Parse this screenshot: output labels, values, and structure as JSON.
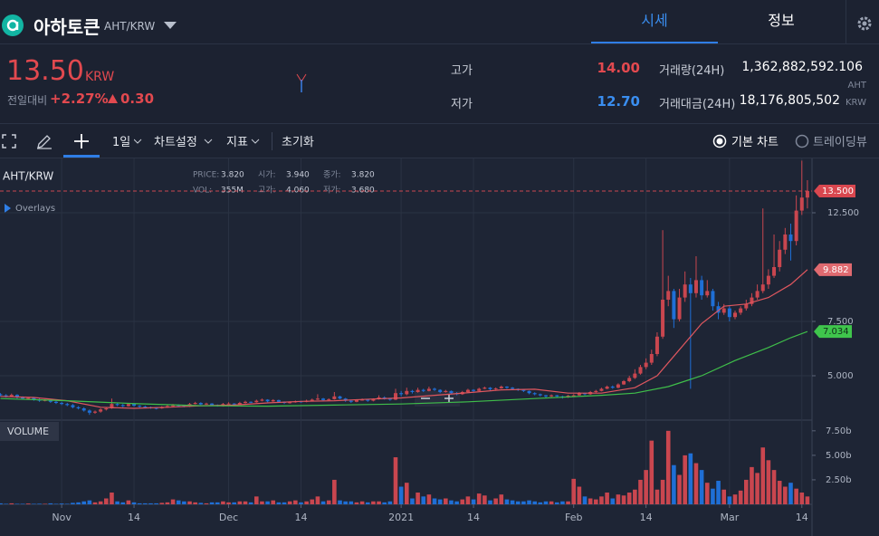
{
  "header": {
    "name": "아하토큰",
    "pair": "AHT/KRW",
    "tabs": [
      "시세",
      "정보"
    ]
  },
  "ticker": {
    "price": "13.50",
    "currency": "KRW",
    "change_label": "전일대비",
    "change_rate": "+2.27%",
    "change_value": "0.30",
    "stats": [
      {
        "label": "고가",
        "value": "14.00"
      },
      {
        "label": "저가",
        "value": "12.70"
      }
    ],
    "volume": {
      "label": "거래량(24H)",
      "value": "1,362,882,592.106",
      "unit": "AHT"
    },
    "turnover": {
      "label": "거래대금(24H)",
      "value": "18,176,805,502",
      "unit": "KRW"
    }
  },
  "toolbar": {
    "interval": "1일",
    "menus": [
      "차트설정",
      "지표"
    ],
    "reset": "초기화",
    "modes": [
      "기본 차트",
      "트레이딩뷰"
    ]
  },
  "chart_data": {
    "type": "candlestick",
    "symbol": "AHT/KRW",
    "legend": [
      {
        "label": "PRICE:",
        "value": "3.820"
      },
      {
        "label": "시가:",
        "value": "3.940"
      },
      {
        "label": "종가:",
        "value": "3.820"
      },
      {
        "label": "VOL:",
        "value": "355M"
      },
      {
        "label": "고가:",
        "value": "4.060"
      },
      {
        "label": "저가:",
        "value": "3.680"
      }
    ],
    "overlays": "Overlays",
    "volume_title": "VOLUME",
    "grid": true,
    "up_color": "#c9464f",
    "down_color": "#1f6fd6",
    "xlim": [
      0,
      145.5
    ],
    "xticks": [
      {
        "value": 11,
        "label": "Nov"
      },
      {
        "value": 24,
        "label": "14"
      },
      {
        "value": 41,
        "label": "Dec"
      },
      {
        "value": 54,
        "label": "14"
      },
      {
        "value": 72,
        "label": "2021"
      },
      {
        "value": 85,
        "label": "14"
      },
      {
        "value": 103,
        "label": "Feb"
      },
      {
        "value": 116,
        "label": "14"
      },
      {
        "value": 131,
        "label": "Mar"
      },
      {
        "value": 144,
        "label": "14"
      }
    ],
    "ylim": [
      3,
      15
    ],
    "yticks": [
      {
        "value": 5,
        "label": "5.000"
      },
      {
        "value": 7.5,
        "label": "7.500"
      },
      {
        "value": 12.5,
        "label": "12.500"
      }
    ],
    "price_line": {
      "value": 13.5,
      "label": "13.500"
    },
    "candles": [
      [
        4.15,
        4.2,
        4.05,
        4.1
      ],
      [
        4.1,
        4.15,
        4.0,
        4.05
      ],
      [
        4.05,
        4.18,
        4.02,
        4.12
      ],
      [
        4.12,
        4.15,
        3.95,
        4.0
      ],
      [
        4.0,
        4.05,
        3.9,
        3.95
      ],
      [
        3.95,
        4.02,
        3.92,
        3.98
      ],
      [
        3.98,
        4.0,
        3.85,
        3.9
      ],
      [
        3.9,
        3.95,
        3.8,
        3.85
      ],
      [
        3.85,
        3.92,
        3.82,
        3.88
      ],
      [
        3.88,
        3.9,
        3.75,
        3.8
      ],
      [
        3.8,
        3.85,
        3.7,
        3.75
      ],
      [
        3.75,
        3.8,
        3.65,
        3.7
      ],
      [
        3.7,
        3.75,
        3.6,
        3.65
      ],
      [
        3.65,
        3.7,
        3.5,
        3.55
      ],
      [
        3.55,
        3.6,
        3.45,
        3.5
      ],
      [
        3.5,
        3.55,
        3.35,
        3.4
      ],
      [
        3.4,
        3.45,
        3.2,
        3.3
      ],
      [
        3.3,
        3.4,
        3.25,
        3.35
      ],
      [
        3.35,
        3.5,
        3.3,
        3.45
      ],
      [
        3.45,
        3.55,
        3.4,
        3.5
      ],
      [
        3.5,
        3.95,
        3.48,
        3.7
      ],
      [
        3.7,
        3.75,
        3.6,
        3.65
      ],
      [
        3.65,
        3.7,
        3.55,
        3.6
      ],
      [
        3.6,
        3.75,
        3.58,
        3.7
      ],
      [
        3.7,
        3.72,
        3.58,
        3.62
      ],
      [
        3.62,
        3.65,
        3.52,
        3.58
      ],
      [
        3.58,
        3.62,
        3.5,
        3.55
      ],
      [
        3.55,
        3.58,
        3.48,
        3.52
      ],
      [
        3.52,
        3.55,
        3.45,
        3.5
      ],
      [
        3.5,
        3.6,
        3.48,
        3.55
      ],
      [
        3.55,
        3.65,
        3.52,
        3.6
      ],
      [
        3.6,
        3.7,
        3.58,
        3.65
      ],
      [
        3.65,
        3.68,
        3.58,
        3.62
      ],
      [
        3.62,
        3.65,
        3.55,
        3.58
      ],
      [
        3.58,
        3.75,
        3.56,
        3.7
      ],
      [
        3.7,
        3.8,
        3.68,
        3.75
      ],
      [
        3.75,
        3.78,
        3.65,
        3.68
      ],
      [
        3.68,
        3.76,
        3.66,
        3.72
      ],
      [
        3.72,
        3.74,
        3.62,
        3.65
      ],
      [
        3.65,
        3.68,
        3.58,
        3.6
      ],
      [
        3.6,
        3.75,
        3.58,
        3.7
      ],
      [
        3.7,
        3.78,
        3.68,
        3.72
      ],
      [
        3.72,
        3.74,
        3.64,
        3.68
      ],
      [
        3.68,
        3.8,
        3.66,
        3.75
      ],
      [
        3.75,
        3.85,
        3.72,
        3.8
      ],
      [
        3.8,
        3.82,
        3.74,
        3.78
      ],
      [
        3.78,
        3.9,
        3.76,
        3.85
      ],
      [
        3.85,
        3.95,
        3.82,
        3.9
      ],
      [
        3.9,
        3.92,
        3.78,
        3.82
      ],
      [
        3.82,
        3.92,
        3.8,
        3.88
      ],
      [
        3.88,
        3.9,
        3.76,
        3.8
      ],
      [
        3.8,
        3.82,
        3.7,
        3.75
      ],
      [
        3.75,
        3.82,
        3.72,
        3.78
      ],
      [
        3.78,
        3.86,
        3.76,
        3.82
      ],
      [
        3.82,
        3.84,
        3.76,
        3.8
      ],
      [
        3.8,
        3.9,
        3.78,
        3.85
      ],
      [
        3.85,
        3.95,
        3.82,
        3.9
      ],
      [
        3.9,
        4.15,
        3.88,
        3.95
      ],
      [
        3.95,
        3.98,
        3.84,
        3.88
      ],
      [
        3.88,
        3.96,
        3.86,
        3.92
      ],
      [
        3.92,
        4.25,
        3.9,
        4.05
      ],
      [
        4.05,
        4.08,
        3.92,
        3.95
      ],
      [
        3.95,
        3.98,
        3.8,
        3.85
      ],
      [
        3.85,
        3.88,
        3.75,
        3.8
      ],
      [
        3.8,
        3.92,
        3.78,
        3.88
      ],
      [
        3.88,
        3.95,
        3.85,
        3.9
      ],
      [
        3.9,
        3.92,
        3.8,
        3.85
      ],
      [
        3.85,
        3.96,
        3.82,
        3.92
      ],
      [
        3.92,
        4.1,
        3.9,
        4.0
      ],
      [
        4.0,
        4.05,
        3.9,
        3.95
      ],
      [
        3.95,
        3.98,
        3.85,
        3.9
      ],
      [
        3.9,
        4.4,
        3.88,
        4.2
      ],
      [
        4.2,
        4.3,
        4.05,
        4.15
      ],
      [
        4.15,
        4.45,
        4.1,
        4.3
      ],
      [
        4.3,
        4.35,
        4.18,
        4.25
      ],
      [
        4.25,
        4.45,
        4.22,
        4.35
      ],
      [
        4.35,
        4.4,
        4.25,
        4.3
      ],
      [
        4.3,
        4.5,
        4.28,
        4.4
      ],
      [
        4.4,
        4.45,
        4.3,
        4.35
      ],
      [
        4.35,
        4.38,
        4.2,
        4.25
      ],
      [
        4.25,
        4.35,
        4.22,
        4.3
      ],
      [
        4.3,
        4.32,
        4.15,
        4.2
      ],
      [
        4.2,
        4.25,
        4.1,
        4.15
      ],
      [
        4.15,
        4.3,
        4.12,
        4.25
      ],
      [
        4.25,
        4.4,
        4.22,
        4.35
      ],
      [
        4.35,
        4.38,
        4.25,
        4.3
      ],
      [
        4.3,
        4.45,
        4.28,
        4.4
      ],
      [
        4.4,
        4.5,
        4.38,
        4.45
      ],
      [
        4.45,
        4.48,
        4.32,
        4.38
      ],
      [
        4.38,
        4.46,
        4.35,
        4.42
      ],
      [
        4.42,
        4.55,
        4.4,
        4.5
      ],
      [
        4.5,
        4.52,
        4.4,
        4.45
      ],
      [
        4.45,
        4.48,
        4.35,
        4.4
      ],
      [
        4.4,
        4.42,
        4.3,
        4.35
      ],
      [
        4.35,
        4.38,
        4.25,
        4.3
      ],
      [
        4.3,
        4.32,
        4.15,
        4.2
      ],
      [
        4.2,
        4.24,
        4.1,
        4.15
      ],
      [
        4.15,
        4.18,
        4.05,
        4.1
      ],
      [
        4.1,
        4.12,
        4.0,
        4.05
      ],
      [
        4.05,
        4.14,
        4.02,
        4.1
      ],
      [
        4.1,
        4.12,
        4.0,
        4.05
      ],
      [
        4.05,
        4.08,
        3.95,
        4.0
      ],
      [
        4.0,
        4.12,
        3.98,
        4.08
      ],
      [
        4.08,
        4.15,
        4.05,
        4.1
      ],
      [
        4.1,
        4.25,
        4.08,
        4.2
      ],
      [
        4.2,
        4.22,
        4.1,
        4.15
      ],
      [
        4.15,
        4.3,
        4.12,
        4.25
      ],
      [
        4.25,
        4.35,
        4.22,
        4.3
      ],
      [
        4.3,
        4.45,
        4.28,
        4.4
      ],
      [
        4.4,
        4.55,
        4.38,
        4.5
      ],
      [
        4.5,
        4.55,
        4.4,
        4.45
      ],
      [
        4.45,
        4.65,
        4.42,
        4.6
      ],
      [
        4.6,
        4.8,
        4.58,
        4.75
      ],
      [
        4.75,
        5.0,
        4.7,
        4.9
      ],
      [
        4.9,
        5.3,
        4.85,
        5.1
      ],
      [
        5.1,
        5.5,
        5.05,
        5.4
      ],
      [
        5.4,
        5.8,
        5.3,
        5.6
      ],
      [
        5.6,
        6.2,
        5.5,
        6.0
      ],
      [
        6.0,
        7.0,
        5.9,
        6.8
      ],
      [
        6.8,
        11.7,
        6.7,
        8.5
      ],
      [
        8.5,
        9.6,
        8.2,
        8.9
      ],
      [
        8.9,
        9.0,
        7.2,
        7.6
      ],
      [
        7.6,
        9.0,
        7.5,
        8.6
      ],
      [
        8.6,
        9.8,
        8.4,
        9.2
      ],
      [
        9.2,
        9.5,
        4.4,
        8.8
      ],
      [
        8.8,
        10.5,
        8.6,
        9.4
      ],
      [
        9.4,
        9.6,
        8.5,
        8.7
      ],
      [
        8.7,
        9.4,
        8.6,
        8.9
      ],
      [
        8.9,
        9.0,
        8.0,
        8.2
      ],
      [
        8.2,
        8.4,
        7.6,
        7.9
      ],
      [
        7.9,
        8.3,
        7.8,
        8.1
      ],
      [
        8.1,
        8.2,
        7.5,
        7.7
      ],
      [
        7.7,
        8.0,
        7.6,
        7.9
      ],
      [
        7.9,
        8.2,
        7.8,
        8.1
      ],
      [
        8.1,
        8.5,
        8.0,
        8.3
      ],
      [
        8.3,
        8.8,
        8.2,
        8.6
      ],
      [
        8.6,
        9.2,
        8.5,
        8.9
      ],
      [
        8.9,
        12.7,
        8.8,
        9.2
      ],
      [
        9.2,
        9.9,
        9.0,
        9.6
      ],
      [
        9.6,
        11.5,
        9.5,
        10.0
      ],
      [
        10.0,
        11.2,
        9.8,
        10.8
      ],
      [
        10.8,
        11.8,
        10.6,
        11.5
      ],
      [
        11.5,
        12.0,
        10.3,
        11.2
      ],
      [
        11.2,
        13.3,
        11.0,
        12.6
      ],
      [
        12.6,
        14.9,
        12.4,
        13.2
      ],
      [
        13.2,
        14.0,
        12.7,
        13.5
      ]
    ],
    "volume": [
      0.1,
      0.05,
      0.1,
      0.05,
      0.05,
      0.08,
      0.05,
      0.06,
      0.05,
      0.1,
      0.05,
      0.08,
      0.05,
      0.15,
      0.2,
      0.3,
      0.4,
      0.2,
      0.3,
      0.6,
      1.2,
      0.3,
      0.2,
      0.4,
      0.2,
      0.1,
      0.1,
      0.1,
      0.1,
      0.15,
      0.2,
      0.5,
      0.4,
      0.3,
      0.3,
      0.2,
      0.15,
      0.1,
      0.2,
      0.2,
      0.3,
      0.2,
      0.2,
      0.3,
      0.3,
      0.2,
      0.8,
      0.3,
      0.3,
      0.4,
      0.2,
      0.2,
      0.3,
      0.4,
      0.2,
      0.3,
      0.5,
      0.8,
      0.3,
      0.4,
      2.5,
      0.4,
      0.3,
      0.3,
      0.2,
      0.3,
      0.2,
      0.3,
      0.3,
      0.2,
      0.3,
      4.8,
      1.8,
      2.2,
      0.6,
      1.2,
      0.8,
      1.0,
      0.6,
      0.5,
      0.6,
      0.4,
      0.3,
      0.5,
      0.8,
      0.5,
      1.1,
      0.9,
      0.4,
      0.6,
      1.0,
      0.5,
      0.4,
      0.3,
      0.3,
      0.4,
      0.3,
      0.2,
      0.3,
      0.3,
      0.2,
      0.3,
      0.3,
      2.6,
      1.8,
      0.8,
      0.6,
      0.5,
      0.8,
      1.2,
      0.6,
      1.0,
      0.9,
      1.2,
      1.5,
      2.5,
      3.5,
      6.5,
      1.5,
      2.5,
      7.5,
      4.0,
      3.0,
      5.0,
      5.2,
      4.2,
      3.5,
      2.2,
      1.6,
      2.4,
      1.5,
      0.8,
      1.0,
      1.4,
      2.5,
      3.8,
      3.2,
      5.8,
      4.5,
      3.5,
      2.4,
      1.8,
      2.2,
      1.6,
      1.2,
      0.8
    ],
    "volume_ylim": [
      0,
      8.5
    ],
    "volume_yticks": [
      {
        "value": 2.5,
        "label": "2.50b"
      },
      {
        "value": 5,
        "label": "5.00b"
      },
      {
        "value": 7.5,
        "label": "7.50b"
      }
    ],
    "ma_lines": [
      {
        "color": "#e0575f",
        "x": [
          0,
          6,
          12,
          18,
          24,
          30,
          36,
          42,
          48,
          54,
          60,
          66,
          72,
          78,
          84,
          90,
          96,
          102,
          108,
          114,
          118,
          122,
          126,
          130,
          134,
          138,
          142,
          145
        ],
        "values": [
          4.05,
          4.0,
          3.85,
          3.55,
          3.5,
          3.55,
          3.62,
          3.65,
          3.75,
          3.82,
          3.85,
          3.92,
          3.98,
          4.1,
          4.22,
          4.35,
          4.38,
          4.2,
          4.2,
          4.45,
          5.0,
          6.2,
          7.4,
          8.2,
          8.3,
          8.6,
          9.2,
          9.882
        ],
        "last_label": 9.882,
        "label_color": "#e06a70"
      },
      {
        "color": "#3fbf4a",
        "x": [
          0,
          12,
          24,
          36,
          48,
          60,
          72,
          84,
          96,
          108,
          114,
          120,
          126,
          132,
          138,
          142,
          145
        ],
        "values": [
          3.95,
          3.85,
          3.72,
          3.62,
          3.6,
          3.65,
          3.7,
          3.8,
          3.95,
          4.1,
          4.2,
          4.5,
          5.0,
          5.7,
          6.3,
          6.75,
          7.034
        ],
        "last_label": 7.034,
        "label_color": "#3fc54c"
      }
    ]
  }
}
